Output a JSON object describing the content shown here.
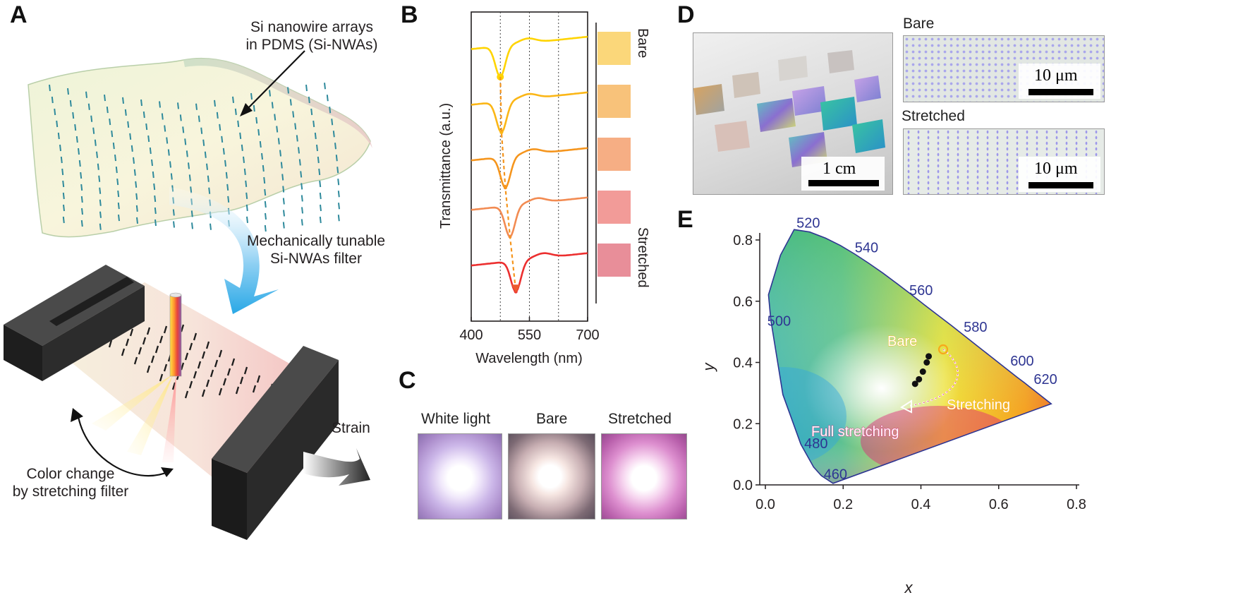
{
  "panels": {
    "a": "A",
    "b": "B",
    "c": "C",
    "d": "D",
    "e": "E"
  },
  "panel_a": {
    "nanowire_label_line1": "Si nanowire arrays",
    "nanowire_label_line2": "in PDMS (Si-NWAs)",
    "filter_label_line1": "Mechanically tunable",
    "filter_label_line2": "Si-NWAs filter",
    "strain_label": "Strain",
    "color_change_line1": "Color change",
    "color_change_line2": "by stretching filter"
  },
  "chart_data": [
    {
      "type": "line",
      "panel": "B",
      "xlabel": "Wavelength (nm)",
      "ylabel": "Transmittance (a.u.)",
      "xlim": [
        400,
        700
      ],
      "xticks": [
        400,
        550,
        700
      ],
      "dotted_gridlines_x": [
        475,
        550,
        625
      ],
      "legend_top": "Bare",
      "legend_bottom": "Stretched",
      "swatch_colors": [
        "#fbd77a",
        "#f8c27a",
        "#f6ae84",
        "#f29b98",
        "#e88e99"
      ],
      "series": [
        {
          "color": "#ffd400",
          "dip_nm": 475,
          "baseline": 0.9
        },
        {
          "color": "#fbb616",
          "dip_nm": 478,
          "baseline": 0.72
        },
        {
          "color": "#f5951d",
          "dip_nm": 488,
          "baseline": 0.54
        },
        {
          "color": "#f28b52",
          "dip_nm": 500,
          "baseline": 0.38
        },
        {
          "color": "#ec2f2f",
          "dip_nm": 515,
          "baseline": 0.2
        }
      ]
    },
    {
      "type": "scatter",
      "panel": "E",
      "xlabel": "x",
      "ylabel": "y",
      "xlim": [
        0.0,
        0.8
      ],
      "ylim": [
        0.0,
        0.8
      ],
      "xticks": [
        "0.0",
        "0.2",
        "0.4",
        "0.6",
        "0.8"
      ],
      "yticks": [
        "0.0",
        "0.2",
        "0.4",
        "0.6",
        "0.8"
      ],
      "wavelength_labels": [
        {
          "text": "460",
          "x": 0.15,
          "y": 0.02
        },
        {
          "text": "480",
          "x": 0.1,
          "y": 0.12
        },
        {
          "text": "500",
          "x": 0.005,
          "y": 0.52
        },
        {
          "text": "520",
          "x": 0.08,
          "y": 0.84
        },
        {
          "text": "540",
          "x": 0.23,
          "y": 0.76
        },
        {
          "text": "560",
          "x": 0.37,
          "y": 0.62
        },
        {
          "text": "580",
          "x": 0.51,
          "y": 0.5
        },
        {
          "text": "600",
          "x": 0.63,
          "y": 0.39
        },
        {
          "text": "620",
          "x": 0.69,
          "y": 0.33
        }
      ],
      "points": [
        {
          "x": 0.42,
          "y": 0.42
        },
        {
          "x": 0.415,
          "y": 0.4
        },
        {
          "x": 0.405,
          "y": 0.37
        },
        {
          "x": 0.395,
          "y": 0.345
        },
        {
          "x": 0.385,
          "y": 0.33
        }
      ],
      "annotations": {
        "bare": "Bare",
        "stretching": "Stretching",
        "full_stretching": "Full stretching"
      }
    }
  ],
  "panel_c": {
    "labels": [
      "White light",
      "Bare",
      "Stretched"
    ]
  },
  "panel_d": {
    "photo_scale": "1 cm",
    "bare_label": "Bare",
    "stretched_label": "Stretched",
    "micro_scale": "10 μm"
  }
}
